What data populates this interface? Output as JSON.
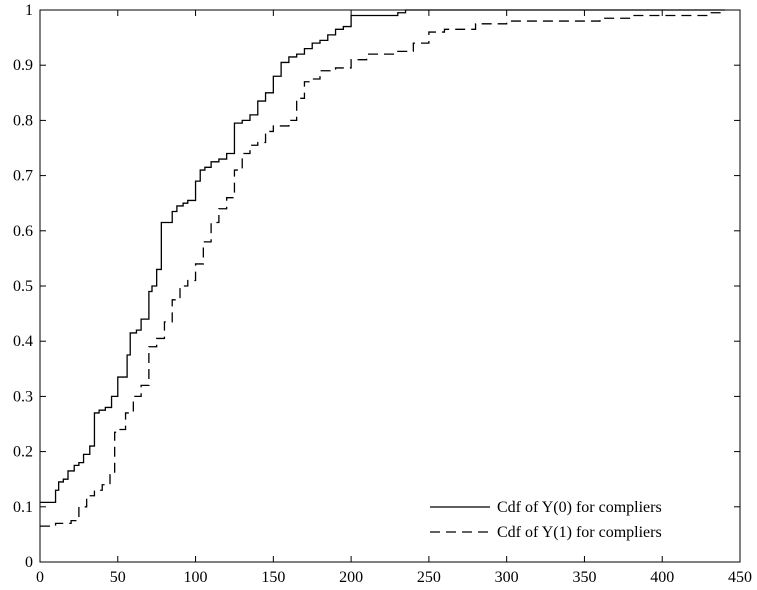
{
  "chart_data": {
    "type": "line",
    "title": "",
    "xlabel": "",
    "ylabel": "",
    "xlim": [
      0,
      450
    ],
    "ylim": [
      0,
      1
    ],
    "grid": false,
    "legend_position": "bottom-right",
    "x_ticks": [
      "0",
      "50",
      "100",
      "150",
      "200",
      "250",
      "300",
      "350",
      "400",
      "450"
    ],
    "y_ticks": [
      "0",
      "0.1",
      "0.2",
      "0.3",
      "0.4",
      "0.5",
      "0.6",
      "0.7",
      "0.8",
      "0.9",
      "1"
    ],
    "series": [
      {
        "name": "Cdf of Y(0) for compliers",
        "style": "solid",
        "color": "#000000",
        "x": [
          0,
          8,
          10,
          12,
          15,
          18,
          22,
          25,
          28,
          32,
          35,
          38,
          42,
          46,
          50,
          56,
          58,
          62,
          65,
          70,
          72,
          75,
          78,
          80,
          85,
          88,
          92,
          95,
          100,
          103,
          106,
          110,
          115,
          120,
          125,
          130,
          135,
          140,
          145,
          150,
          155,
          160,
          165,
          170,
          175,
          180,
          185,
          190,
          195,
          200,
          205,
          210,
          230,
          235,
          250,
          300,
          350,
          400,
          440
        ],
        "y": [
          0.108,
          0.108,
          0.13,
          0.145,
          0.15,
          0.165,
          0.175,
          0.18,
          0.195,
          0.21,
          0.27,
          0.275,
          0.28,
          0.3,
          0.335,
          0.375,
          0.415,
          0.42,
          0.44,
          0.49,
          0.5,
          0.53,
          0.615,
          0.615,
          0.635,
          0.645,
          0.65,
          0.655,
          0.69,
          0.71,
          0.715,
          0.725,
          0.73,
          0.74,
          0.795,
          0.8,
          0.81,
          0.835,
          0.85,
          0.88,
          0.905,
          0.915,
          0.92,
          0.93,
          0.94,
          0.945,
          0.955,
          0.965,
          0.97,
          0.99,
          0.99,
          0.99,
          0.995,
          1.0,
          1.0,
          1.0,
          1.0,
          1.0,
          1.0
        ]
      },
      {
        "name": "Cdf of Y(1) for compliers",
        "style": "dashed",
        "color": "#000000",
        "x": [
          0,
          10,
          15,
          20,
          25,
          30,
          35,
          40,
          45,
          48,
          50,
          55,
          60,
          65,
          70,
          75,
          80,
          85,
          90,
          95,
          100,
          105,
          110,
          115,
          120,
          125,
          130,
          135,
          140,
          145,
          150,
          155,
          160,
          165,
          170,
          175,
          180,
          190,
          200,
          210,
          220,
          230,
          240,
          250,
          260,
          280,
          300,
          320,
          340,
          360,
          380,
          400,
          420,
          430,
          440
        ],
        "y": [
          0.065,
          0.07,
          0.07,
          0.075,
          0.1,
          0.12,
          0.13,
          0.14,
          0.16,
          0.235,
          0.24,
          0.27,
          0.3,
          0.32,
          0.39,
          0.405,
          0.435,
          0.475,
          0.5,
          0.51,
          0.54,
          0.58,
          0.615,
          0.64,
          0.66,
          0.71,
          0.74,
          0.755,
          0.76,
          0.78,
          0.79,
          0.79,
          0.8,
          0.84,
          0.87,
          0.875,
          0.89,
          0.895,
          0.91,
          0.92,
          0.92,
          0.925,
          0.94,
          0.96,
          0.965,
          0.975,
          0.98,
          0.98,
          0.98,
          0.985,
          0.99,
          0.99,
          0.99,
          0.995,
          1.0
        ]
      }
    ]
  }
}
